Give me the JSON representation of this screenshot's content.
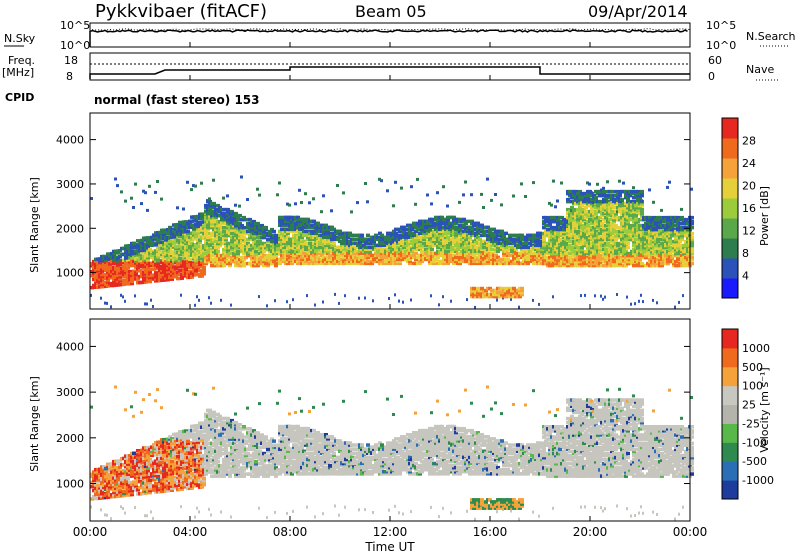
{
  "header": {
    "station": "Pykkvibaer (fitACF)",
    "beam": "Beam 05",
    "date": "09/Apr/2014"
  },
  "noise_panel": {
    "left_label": "N.Sky",
    "right_label": "N.Search",
    "ticks": [
      "10^5",
      "10^0"
    ]
  },
  "freq_panel": {
    "left_label_1": "Freq.",
    "left_label_2": "[MHz]",
    "left_ticks": [
      "18",
      "8"
    ],
    "right_label": "Nave",
    "right_ticks": [
      "60",
      "0"
    ],
    "cpid_label": "CPID",
    "cpid_text": "normal (fast stereo) 153"
  },
  "chart_data": [
    {
      "type": "heatmap",
      "title": "",
      "ylabel": "Slant Range [km]",
      "ylim": [
        180,
        4600
      ],
      "y_ticks": [
        1000,
        2000,
        3000,
        4000
      ],
      "colorbar_label": "Power [dB]",
      "colorbar_ticks": [
        "28",
        "24",
        "20",
        "16",
        "12",
        "8",
        "4"
      ],
      "colorbar_colors": [
        "#1a1aff",
        "#2a52b8",
        "#2e7d4f",
        "#5aa84a",
        "#9ccb3c",
        "#e6d03a",
        "#f5a23a",
        "#f06a1e",
        "#e62820"
      ],
      "scatter_regions": [
        {
          "t_start": 0.0,
          "t_end": 4.5,
          "r_start": 700,
          "r_end": 1300,
          "power": "high"
        },
        {
          "t_start": 0.5,
          "t_end": 7.5,
          "r_start": 1300,
          "r_end": 3000,
          "power": "medium"
        },
        {
          "t_start": 7.5,
          "t_end": 18.0,
          "r_start": 1200,
          "r_end": 2200,
          "power": "medium"
        },
        {
          "t_start": 18.0,
          "t_end": 24.0,
          "r_start": 1200,
          "r_end": 3100,
          "power": "medium"
        }
      ]
    },
    {
      "type": "heatmap",
      "title": "",
      "ylabel": "Slant Range [km]",
      "ylim": [
        180,
        4600
      ],
      "y_ticks": [
        1000,
        2000,
        3000,
        4000
      ],
      "colorbar_label": "Velocity [m s⁻¹]",
      "colorbar_ticks": [
        "1000",
        "500",
        "100",
        "25",
        "-25",
        "-100",
        "-500",
        "-1000"
      ],
      "colorbar_colors": [
        "#1e3c9c",
        "#2a6fb5",
        "#2e8a4e",
        "#58b84a",
        "#b4b4ac",
        "#c8c8c0",
        "#f5a23a",
        "#f06a1e",
        "#e62820"
      ],
      "x_ticks": [
        "00:00",
        "04:00",
        "08:00",
        "12:00",
        "16:00",
        "20:00",
        "00:00"
      ],
      "xlabel": "Time UT"
    }
  ]
}
